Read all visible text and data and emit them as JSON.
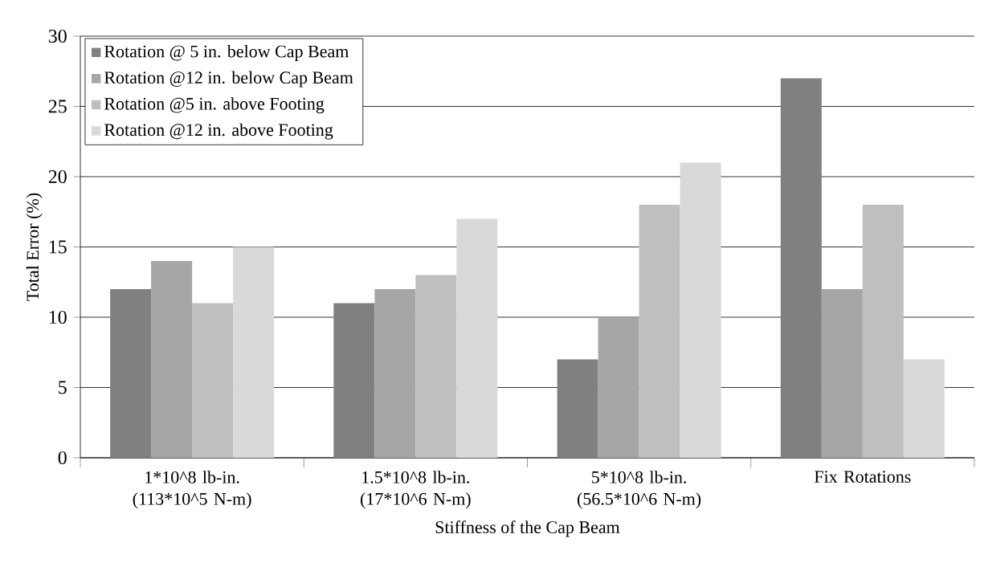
{
  "chart_data": {
    "type": "bar",
    "xlabel": "Stiffness of the Cap Beam",
    "ylabel": "Total Error (%)",
    "categories": [
      "1*10^8 lb-in. (113*10^5 N-m)",
      "1.5*10^8 lb-in. (17*10^6 N-m)",
      "5*10^8 lb-in. (56.5*10^6 N-m)",
      "Fix Rotations"
    ],
    "series": [
      {
        "name": "Rotation @ 5 in. below Cap Beam",
        "color": "#808080",
        "values": [
          12,
          11,
          7,
          27
        ]
      },
      {
        "name": "Rotation @12 in. below Cap Beam",
        "color": "#a6a6a6",
        "values": [
          14,
          12,
          10,
          12
        ]
      },
      {
        "name": "Rotation @5 in. above Footing",
        "color": "#bfbfbf",
        "values": [
          11,
          13,
          18,
          18
        ]
      },
      {
        "name": "Rotation @12 in. above Footing",
        "color": "#d9d9d9",
        "values": [
          15,
          17,
          21,
          7
        ]
      }
    ],
    "ylim": [
      0,
      30
    ],
    "yticks": [
      0,
      5,
      10,
      15,
      20,
      25,
      30
    ],
    "grid": "y",
    "legend": "top left"
  }
}
